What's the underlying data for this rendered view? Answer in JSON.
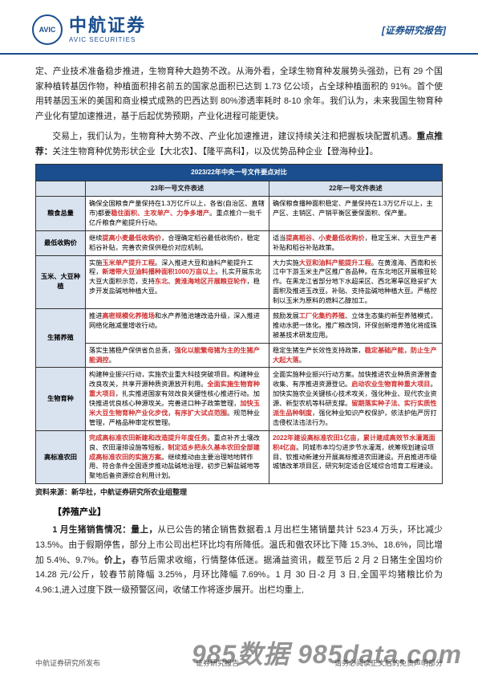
{
  "header": {
    "logo_abbr": "AVIC",
    "logo_cn": "中航证券",
    "logo_en": "AVIC SECURITIES",
    "report_tag": "[证券研究报告]"
  },
  "paras": {
    "p1": "定、产业技术准备稳步推进，生物育种大趋势不改。从海外看，全球生物育种发展势头强劲，已有 29 个国家种植转基因作物，种植面积排名前五的国家总面积已达到 1.73 亿公顷，占全球种植面积的 91%。首个使用转基因玉米的美国和商业模式成熟的巴西达到 80%渗透率耗时 8-10 余年。我们认为，未来我国生物育种产业化有望加速推进，基于后起优势预期，产业化进程可能更快。",
    "p2_a": "交易上，我们认为，生物育种大势不改、产业化加速推进，建议持续关注和把握板块配置机遇。",
    "p2_b": "重点推荐：",
    "p2_c": "关注生物育种优势形状企业【大北农】、【隆平高科】，以及优势品种企业【登海种业】。"
  },
  "table": {
    "title": "2023/22年中央一号文件要点对比",
    "col23": "23年一号文件表述",
    "col22": "22年一号文件表述",
    "rows": [
      {
        "head": "粮食总量",
        "c23_plain_a": "确保全国粮食产量保持在1.3万亿斤以上，各省(自治区、直辖市)都要",
        "c23_red": "稳住面积、主攻单产、力争多增产",
        "c23_plain_b": "。重点推介一批千亿斤粮食产能提升行动。",
        "c22": "确保粮食播种面积稳定、产量保持在1.3万亿斤以上，主产区、主销区、产销平衡区要保面积、保产量。"
      },
      {
        "head": "最低收购价",
        "c23_plain_a": "继续",
        "c23_red": "提高小麦最低收购价",
        "c23_plain_b": "，合理确定稻谷最低收购价，稳定稻谷补贴，完善农资保供稳价对应机制。",
        "c22_a": "适当",
        "c22_red": "提高稻谷、小麦最低收购价",
        "c22_b": "，稳定玉米、大豆生产者补贴和稻谷补贴政策。"
      },
      {
        "head": "玉米、大豆种植",
        "c23_plain_a": "实施",
        "c23_red_a": "玉米单产提升工程",
        "c23_plain_b": "。深入推进大豆和油料产能提升工程，",
        "c23_red_b": "新增带大豆油料播种面积1000万亩以上",
        "c23_plain_c": "。扎实开展东北大豆大面积示范，支持",
        "c23_red_c": "东北、黄淮海地区开展粮豆轮作",
        "c23_plain_d": "，稳步开发盐碱地种植大豆。",
        "c22_a": "大力实施",
        "c22_red": "大豆和油料产能提升工程",
        "c22_b": "。在黄淮海、西南和长江中下游玉米主产区推广各品种。在东北地区开展粮豆轮作。在黑龙江省部分地下水超采区、西北寒旱区稳妥扩大面积及推进玉改豆。补贴、支持盐碱地种植大豆。严格控制以玉米为原料的燃料乙醇加工。"
      },
      {
        "head": "生猪养殖",
        "c23_a": "推进",
        "c23_red_a": "高密规模化养殖场",
        "c23_b": "和水产养殖池塘改造升级，深入推进网络化融减量增收行动。",
        "c23_c": "落实生猪稳产保供省负总责，",
        "c23_red_b": "强化以能繁母猪为主的生猪产能调控",
        "c23_d": "。",
        "c22_a": "鼓励发展",
        "c22_red_a": "工厂化集约养殖",
        "c22_b": "、立体生态集约新型养殖模式，推动水肥一体化。推广粮改饲，环保创新增养殖化将成珠被基技术研发应用。",
        "c22_c": "稳定生猪生产长效性支持政策，",
        "c22_red_b": "稳定基础产能，防止生产大起大落",
        "c22_d": "。"
      },
      {
        "head": "生物育种",
        "c23_a": "构建种业振兴行动，实施农业重大科技突破项目。构建种业改良攻关，共享开源种质资源放开利用。",
        "c23_red_a": "全面实施生物育种重大项目",
        "c23_b": "，扎实推进国家有效改良关键性核心推进行动。加快推进优良核心种源攻关。完善进口种子政策管理，",
        "c23_red_b": "加快玉米大豆生物育种产业化步伐，有序扩大试点范围",
        "c23_c": "。规范种业管理，严格品种审定权管理。",
        "c22_a": "全面实施种业振兴行动方案。加快推进农业种质资源普查收集、有序推进资源登记。",
        "c22_red_a": "启动农业生物育种重大项目",
        "c22_b": "。加快实施农业关键核心技术攻关，强化种业、现代农业资源、新型农机等科研支撑。",
        "c22_red_b": "留期落实种子法、实行实质性派生品种制度",
        "c22_c": "，强化种业知识产权保护，依法护佑严厉打击侵权法违法行为。"
      },
      {
        "head": "高标准农田",
        "c23_red_a": "完成高标准农田新建和改造提升年度任务",
        "c23_a": "。重点补齐土壤改良、农田灌排设施等短板，",
        "c23_red_b": "制定适乡把永久基本农田全部建成高标准农田的实施方案",
        "c23_b": "。继续推动由主要治理地地转作用、符合条件全国逐步推动盐碱地治理，初步已解盐碱地等聚地后备资源综合利用计划。",
        "c22_red": "2022年建设高标准农田1亿亩，累计建成高效节水灌溉面积4亿亩",
        "c22_a": "。同城市本均匀进步节水灌溉，统筹规划建设项目、钦推动新建分开展高标推进农田建设。开启推进市级城镇改革项目区，研究制定适合区域综合培育工程建设。"
      }
    ],
    "source": "资料来源：新华社，中航证券研究所农业组整理"
  },
  "section2": {
    "title": "【养殖产业】",
    "p_a": "1 月生猪销售情况：量上，",
    "p_b": "从已公告的猪企销售数据看,1 月出栏生猪销量共计 523.4 万头，环比减少 13.5%。由于假期停售，部分上市公司出栏环比均有所降低。温氏和傲农环比下降 15.3%、18.6%，同比增加 5.4%、9.7%。",
    "p_c": "价上，",
    "p_d": "春节后需求收缩，行情整体低迷。据涌益资讯，截至节后 2 月 2 日猪生全国均价 14.28 元/公斤，较春节前降幅 3.25%，月环比降幅 7.69%。1 月 30 日-2 月 3 日,全国平均猪粮比价为 4.96:1,进入过度下跌一级预警区间，收储工作将逐步展开。出栏均重上,"
  },
  "footer": {
    "left": "中航证券研究所发布",
    "mid": "证券研究报告",
    "right": "请务必阅读正文后的免责声明部分"
  },
  "watermark": "985数据 985data.com",
  "colors": {
    "brand": "#1a4e8e",
    "table_header_bg": "#1a4e8e",
    "sub_bg": "#d9e2ef",
    "red": "#d03030"
  }
}
